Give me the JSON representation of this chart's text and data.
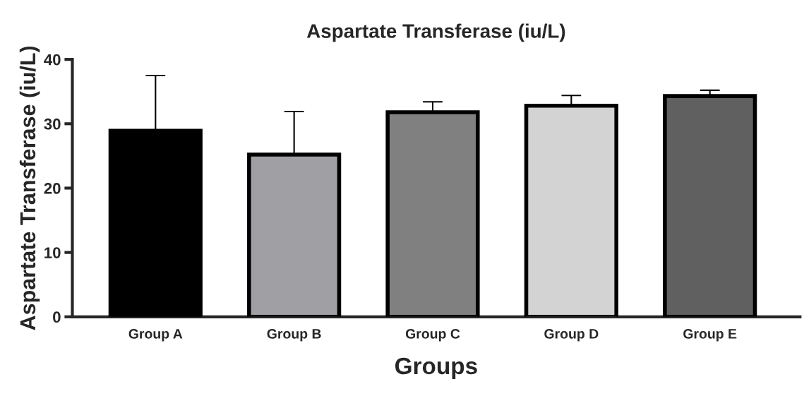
{
  "chart_data": {
    "type": "bar",
    "title": "Aspartate Transferase (iu/L)",
    "xlabel": "Groups",
    "ylabel": "Aspartate Transferase (iu/L)",
    "categories": [
      "Group A",
      "Group B",
      "Group C",
      "Group D",
      "Group E"
    ],
    "values": [
      28.9,
      25.2,
      31.8,
      32.8,
      34.3
    ],
    "colors": [
      "#000000",
      "#a0a0a4",
      "#808080",
      "#d3d3d3",
      "#606060"
    ],
    "errors": [
      [
        28.9,
        37.5
      ],
      [
        25.2,
        31.9
      ],
      [
        31.8,
        33.4
      ],
      [
        32.8,
        34.4
      ],
      [
        34.3,
        35.2
      ]
    ],
    "ylim": [
      0,
      40
    ],
    "yticks": [
      0,
      10,
      20,
      30,
      40
    ],
    "grid": false,
    "legend": false
  }
}
